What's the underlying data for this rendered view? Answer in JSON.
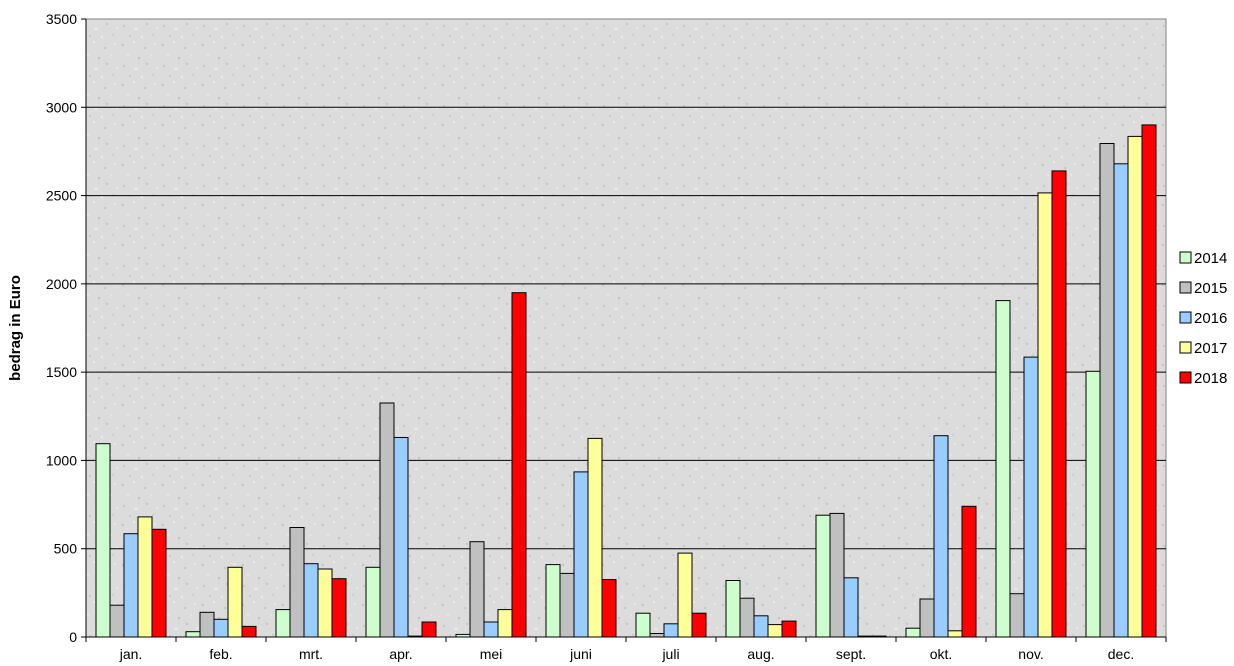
{
  "chart_data": {
    "type": "bar",
    "title": "",
    "xlabel": "",
    "ylabel": "bedrag in Euro",
    "ylim": [
      0,
      3500
    ],
    "yticks": [
      0,
      500,
      1000,
      1500,
      2000,
      2500,
      3000,
      3500
    ],
    "grid": "horizontal",
    "legend_position": "right",
    "categories": [
      "jan.",
      "feb.",
      "mrt.",
      "apr.",
      "mei",
      "juni",
      "juli",
      "aug.",
      "sept.",
      "okt.",
      "nov.",
      "dec."
    ],
    "series": [
      {
        "name": "2014",
        "color": "#ccffcc",
        "values": [
          1095,
          30,
          155,
          395,
          15,
          410,
          135,
          320,
          690,
          50,
          1905,
          1505
        ]
      },
      {
        "name": "2015",
        "color": "#c0c0c0",
        "values": [
          180,
          140,
          620,
          1325,
          540,
          360,
          20,
          220,
          700,
          215,
          245,
          2795
        ]
      },
      {
        "name": "2016",
        "color": "#99ccff",
        "values": [
          585,
          100,
          415,
          1130,
          85,
          935,
          75,
          120,
          335,
          1140,
          1585,
          2680
        ]
      },
      {
        "name": "2017",
        "color": "#ffff99",
        "values": [
          680,
          395,
          385,
          5,
          155,
          1125,
          475,
          70,
          5,
          35,
          2515,
          2835
        ]
      },
      {
        "name": "2018",
        "color": "#ff0000",
        "values": [
          610,
          60,
          330,
          85,
          1950,
          325,
          135,
          90,
          5,
          740,
          2640,
          2900
        ]
      }
    ]
  }
}
